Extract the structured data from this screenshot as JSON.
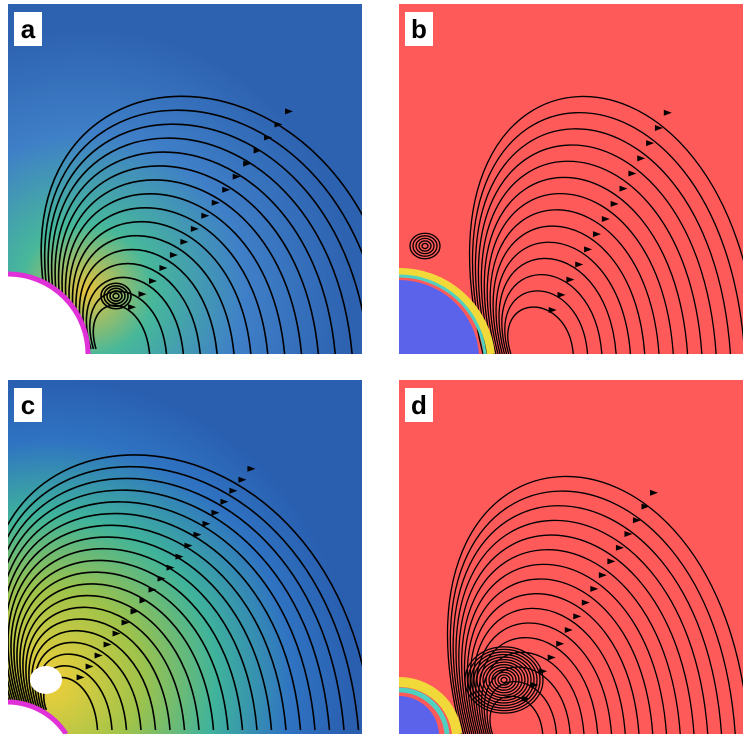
{
  "panels": [
    {
      "id": "a",
      "label": "a",
      "kind": "experiment",
      "colors": {
        "field": "#3f7fc8",
        "glow": "#e8c23a",
        "accent": "#47b89a",
        "obstacle": "#ffffff",
        "boundary": "#e030d8"
      }
    },
    {
      "id": "b",
      "label": "b",
      "kind": "simulation",
      "colors": {
        "field": "#ff5a5a",
        "obstacle": "#5a63ea",
        "boundary": "#f2d93a"
      }
    },
    {
      "id": "c",
      "label": "c",
      "kind": "experiment",
      "colors": {
        "field": "#2f73c2",
        "glow": "#f0cf3a",
        "accent": "#3fb39b",
        "obstacle": "#ffffff",
        "boundary": "#e030d8"
      }
    },
    {
      "id": "d",
      "label": "d",
      "kind": "simulation",
      "colors": {
        "field": "#ff5a5a",
        "obstacle": "#5a63ea",
        "boundary": "#f2d93a"
      }
    }
  ],
  "streamline_color": "#000000"
}
